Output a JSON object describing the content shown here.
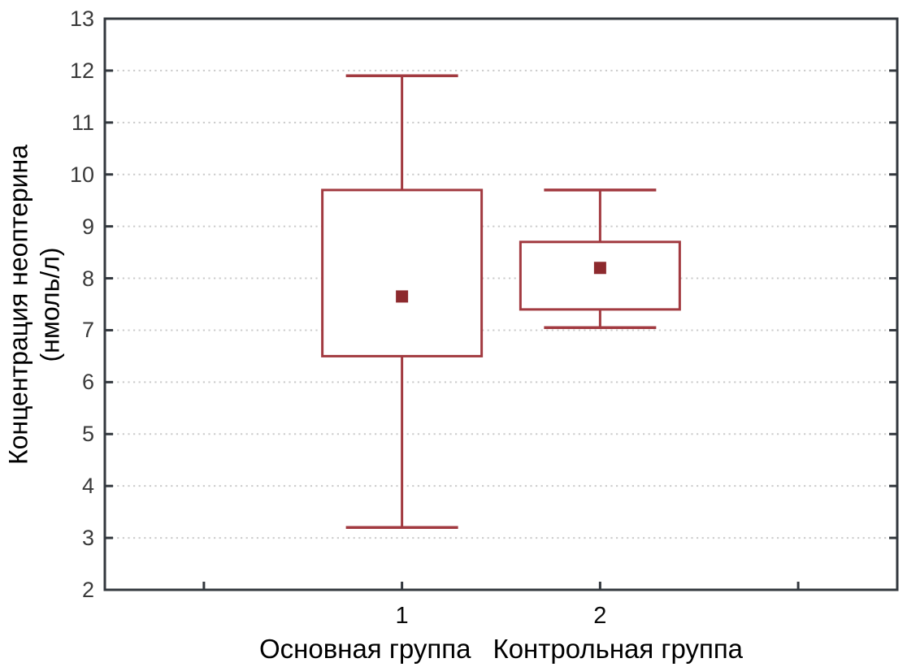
{
  "chart_data": {
    "type": "box",
    "title": "",
    "xlabel": "",
    "ylabel": "Концентрация неоптерина (нмоль/л)",
    "ylabel_line1": "Концентрация неоптерина",
    "ylabel_line2": "(нмоль/л)",
    "ylim": [
      2,
      13
    ],
    "yticks": [
      2,
      3,
      4,
      5,
      6,
      7,
      8,
      9,
      10,
      11,
      12,
      13
    ],
    "grid": "horizontal dotted gridlines at each integer tick",
    "legend": "none",
    "x_slots": 4,
    "occupied_slots": [
      1,
      2
    ],
    "categories": [
      "1",
      "2"
    ],
    "category_labels": [
      "Основная группа",
      "Контрольная группа"
    ],
    "series": [
      {
        "category": "1",
        "label": "Основная группа",
        "whisker_low": 3.2,
        "box_low": 6.5,
        "point": 7.65,
        "box_high": 9.7,
        "whisker_high": 11.9
      },
      {
        "category": "2",
        "label": "Контрольная группа",
        "whisker_low": 7.05,
        "box_low": 7.4,
        "point": 8.2,
        "box_high": 8.7,
        "whisker_high": 9.7
      }
    ],
    "colors": {
      "box_line": "#a23a40",
      "point_marker": "#8d2a2e",
      "axis_frame": "#33383e",
      "gridline": "#cbcbcb",
      "y_tick_label": "#3a3a3a",
      "category_text": "#0a0a0a"
    }
  }
}
